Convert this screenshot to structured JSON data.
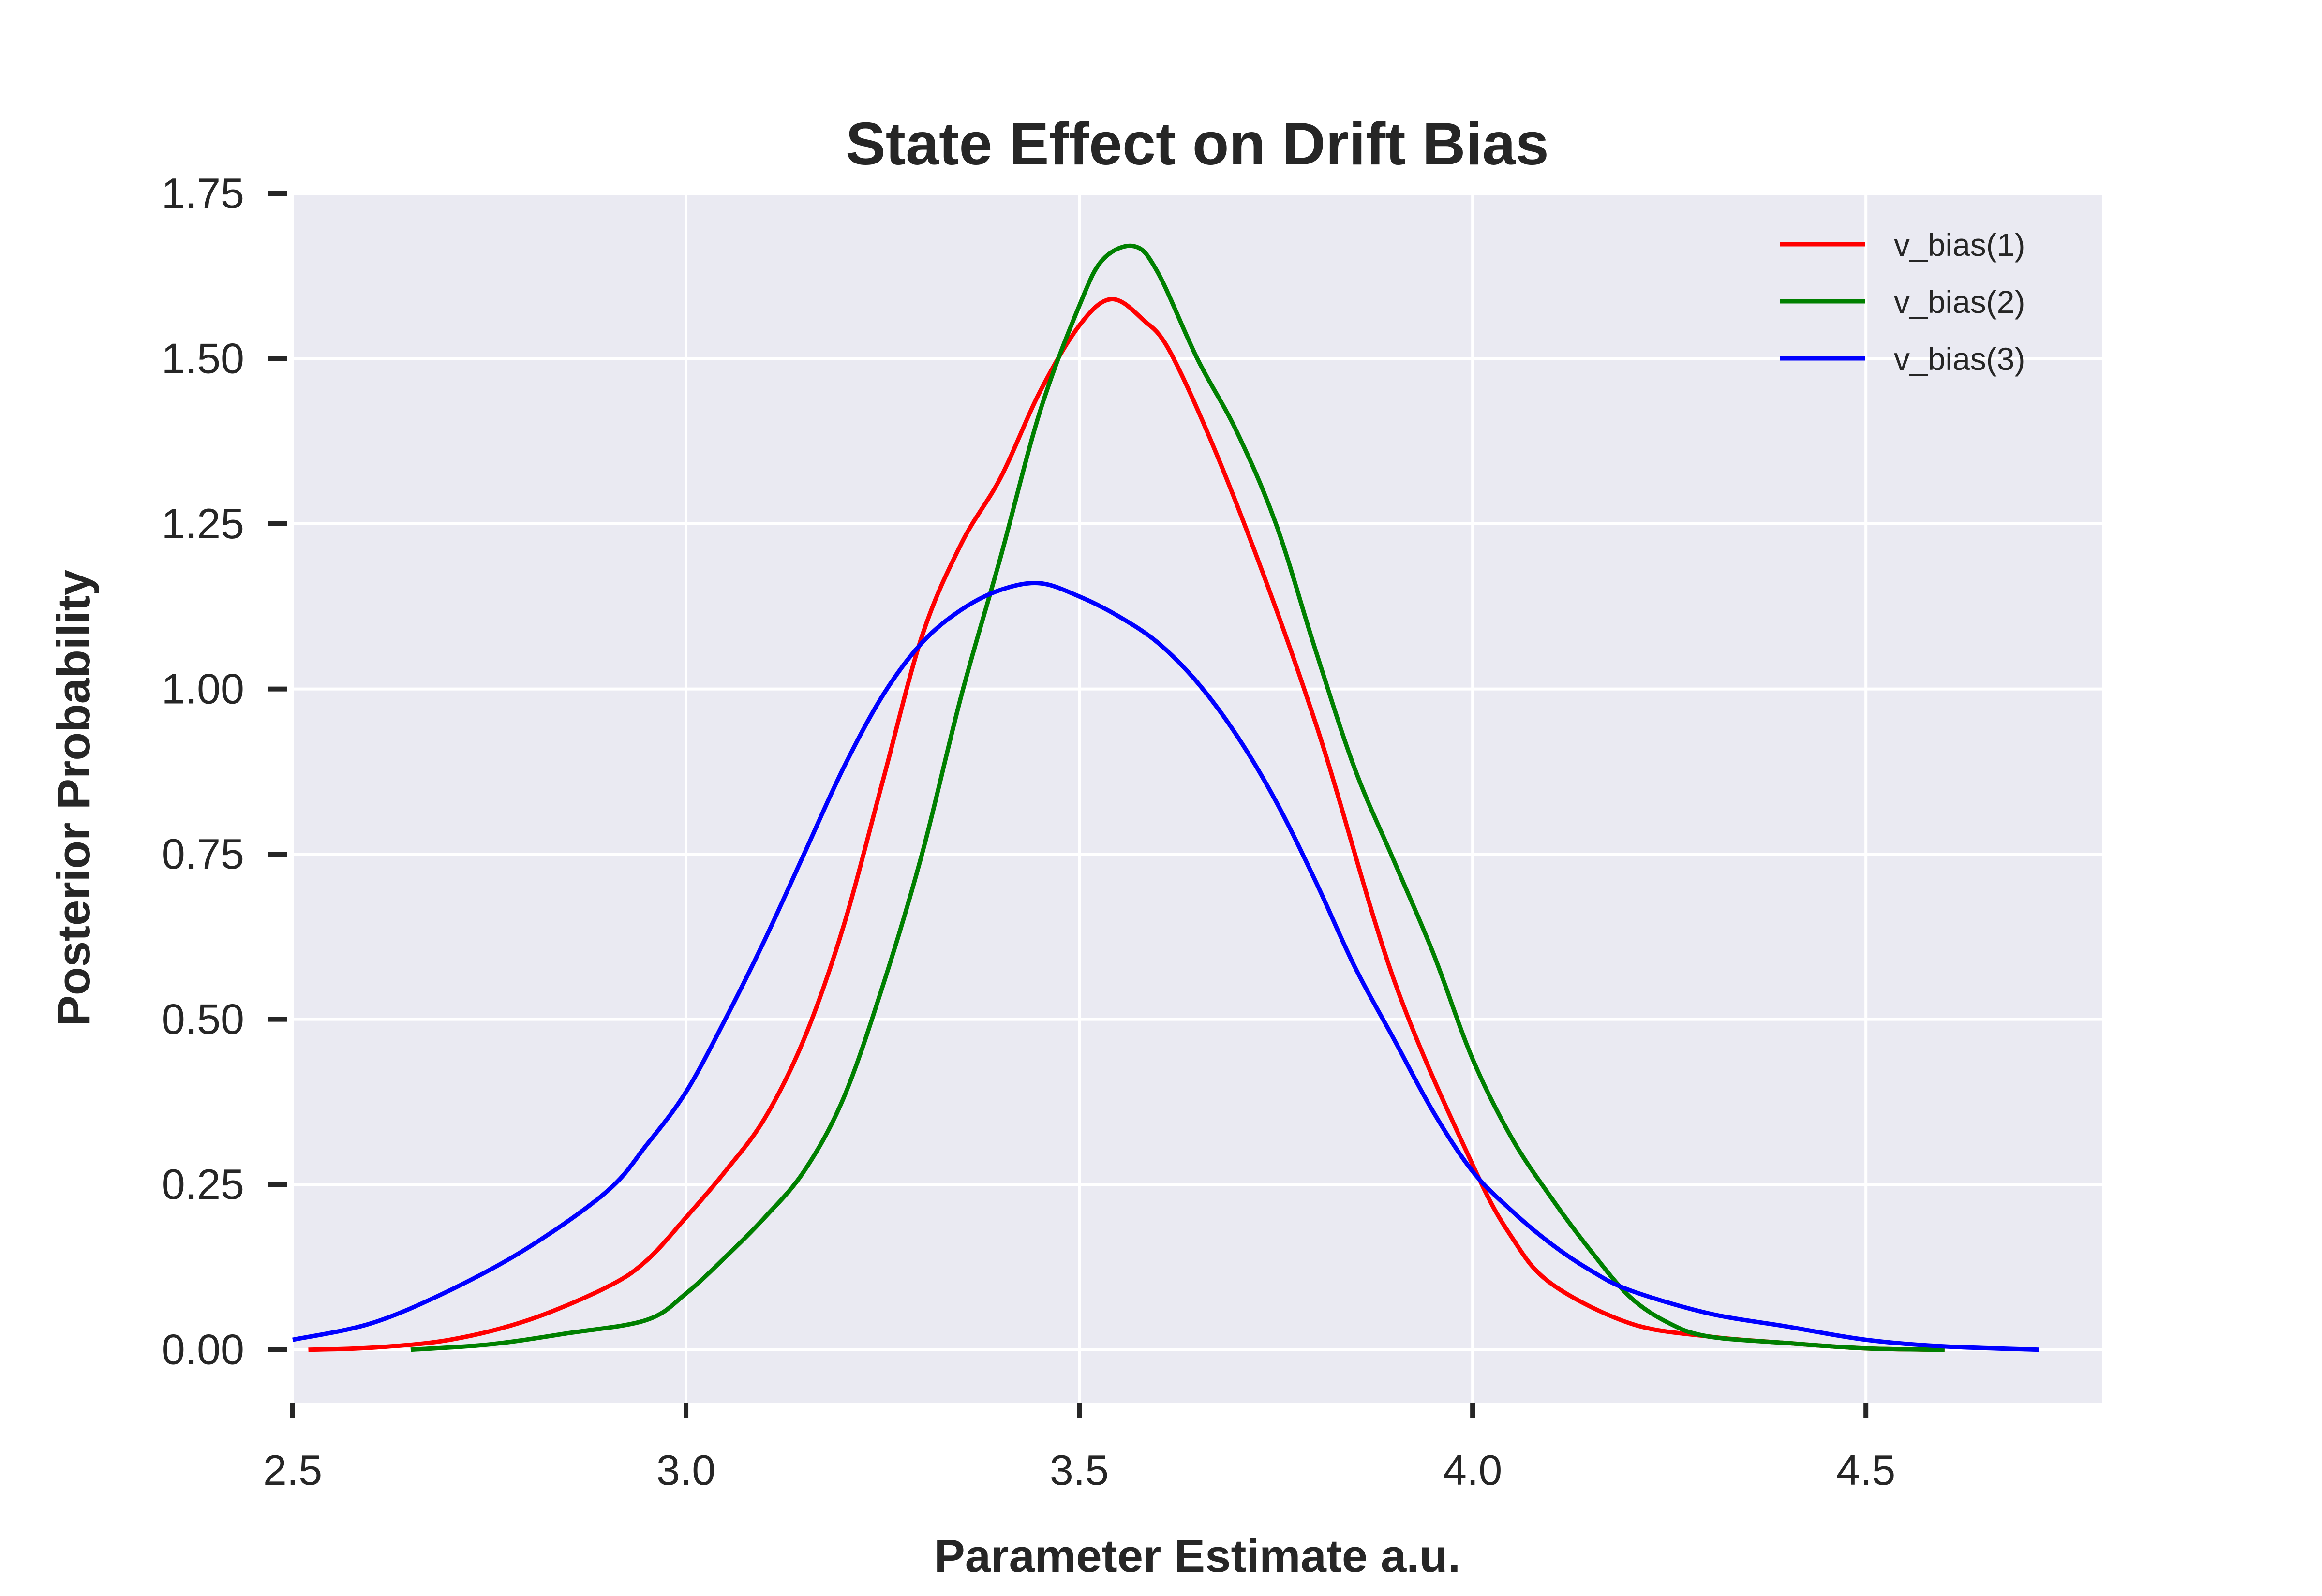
{
  "chart_data": {
    "type": "line",
    "title": "State Effect on Drift Bias",
    "xlabel": "Parameter Estimate a.u.",
    "ylabel": "Posterior Probability",
    "xlim": [
      2.5,
      4.8
    ],
    "ylim": [
      -0.08,
      1.75
    ],
    "xticks": [
      2.5,
      3.0,
      3.5,
      4.0,
      4.5
    ],
    "xtick_labels": [
      "2.5",
      "3.0",
      "3.5",
      "4.0",
      "4.5"
    ],
    "yticks": [
      0.0,
      0.25,
      0.5,
      0.75,
      1.0,
      1.25,
      1.5,
      1.75
    ],
    "ytick_labels": [
      "0.00",
      "0.25",
      "0.50",
      "0.75",
      "1.00",
      "1.25",
      "1.50",
      "1.75"
    ],
    "grid": true,
    "background": "#eaeaf2",
    "legend_position": "top-right",
    "series": [
      {
        "name": "v_bias(1)",
        "color": "#ff0000",
        "x": [
          2.52,
          2.6,
          2.7,
          2.8,
          2.9,
          2.95,
          3.0,
          3.05,
          3.1,
          3.15,
          3.2,
          3.25,
          3.3,
          3.35,
          3.4,
          3.45,
          3.5,
          3.54,
          3.58,
          3.62,
          3.7,
          3.8,
          3.9,
          4.0,
          4.05,
          4.1,
          4.2,
          4.3,
          4.4,
          4.5,
          4.6
        ],
        "y": [
          0.0,
          0.003,
          0.015,
          0.045,
          0.095,
          0.135,
          0.2,
          0.27,
          0.35,
          0.47,
          0.64,
          0.86,
          1.08,
          1.22,
          1.32,
          1.45,
          1.55,
          1.59,
          1.56,
          1.5,
          1.28,
          0.95,
          0.56,
          0.28,
          0.17,
          0.1,
          0.04,
          0.02,
          0.01,
          0.002,
          0.0
        ]
      },
      {
        "name": "v_bias(2)",
        "color": "#008000",
        "x": [
          2.65,
          2.75,
          2.85,
          2.95,
          3.0,
          3.05,
          3.1,
          3.15,
          3.2,
          3.25,
          3.3,
          3.35,
          3.4,
          3.45,
          3.5,
          3.53,
          3.57,
          3.6,
          3.65,
          3.7,
          3.75,
          3.8,
          3.85,
          3.9,
          3.95,
          4.0,
          4.05,
          4.1,
          4.15,
          4.2,
          4.25,
          4.3,
          4.4,
          4.5,
          4.6
        ],
        "y": [
          0.0,
          0.008,
          0.025,
          0.045,
          0.085,
          0.14,
          0.2,
          0.27,
          0.38,
          0.55,
          0.75,
          0.99,
          1.2,
          1.42,
          1.58,
          1.65,
          1.67,
          1.63,
          1.5,
          1.39,
          1.25,
          1.06,
          0.88,
          0.74,
          0.6,
          0.44,
          0.32,
          0.23,
          0.15,
          0.08,
          0.04,
          0.02,
          0.01,
          0.002,
          0.0
        ]
      },
      {
        "name": "v_bias(3)",
        "color": "#0000ff",
        "x": [
          2.5,
          2.6,
          2.7,
          2.8,
          2.9,
          2.95,
          3.0,
          3.05,
          3.1,
          3.15,
          3.2,
          3.25,
          3.3,
          3.35,
          3.4,
          3.45,
          3.5,
          3.55,
          3.6,
          3.65,
          3.7,
          3.75,
          3.8,
          3.85,
          3.9,
          3.95,
          4.0,
          4.05,
          4.1,
          4.15,
          4.2,
          4.3,
          4.4,
          4.5,
          4.6,
          4.72
        ],
        "y": [
          0.015,
          0.04,
          0.09,
          0.155,
          0.24,
          0.31,
          0.39,
          0.5,
          0.62,
          0.75,
          0.88,
          0.99,
          1.07,
          1.12,
          1.15,
          1.16,
          1.14,
          1.11,
          1.07,
          1.01,
          0.93,
          0.83,
          0.71,
          0.58,
          0.47,
          0.36,
          0.27,
          0.21,
          0.16,
          0.12,
          0.09,
          0.055,
          0.035,
          0.015,
          0.005,
          0.0
        ]
      }
    ]
  }
}
